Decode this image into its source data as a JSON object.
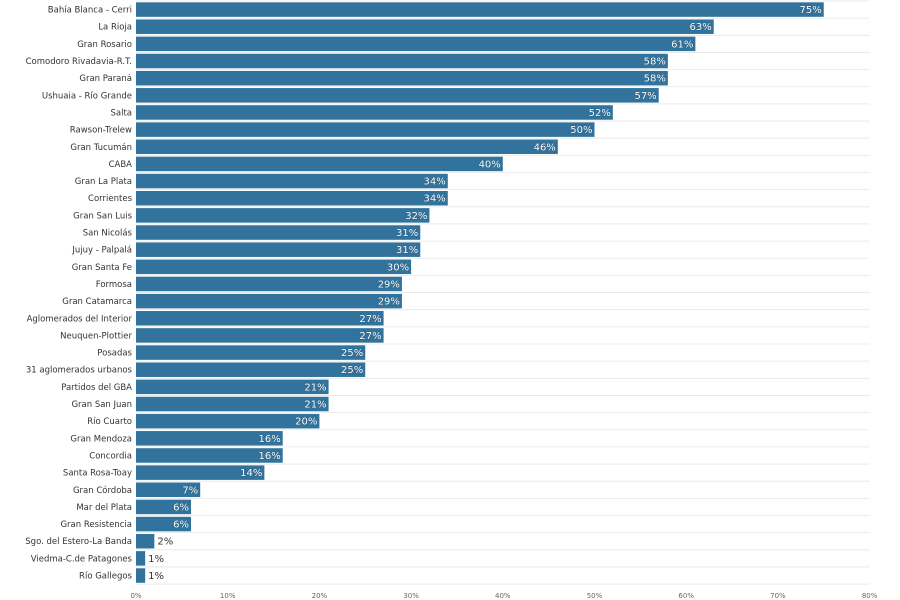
{
  "chart_data": {
    "type": "bar",
    "orientation": "horizontal",
    "categories": [
      "Bahía Blanca - Cerri",
      "La Rioja",
      "Gran Rosario",
      "Comodoro Rivadavia-R.T.",
      "Gran Paraná",
      "Ushuaia - Río Grande",
      "Salta",
      "Rawson-Trelew",
      "Gran Tucumán",
      "CABA",
      "Gran La Plata",
      "Corrientes",
      "Gran San Luis",
      "San Nicolás",
      "Jujuy - Palpalá",
      "Gran Santa Fe",
      "Formosa",
      "Gran Catamarca",
      "Aglomerados del Interior",
      "Neuquen-Plottier",
      "Posadas",
      "31 aglomerados urbanos",
      "Partidos del GBA",
      "Gran San Juan",
      "Río Cuarto",
      "Gran Mendoza",
      "Concordia",
      "Santa Rosa-Toay",
      "Gran Córdoba",
      "Mar del Plata",
      "Gran Resistencia",
      "Sgo. del Estero-La Banda",
      "Viedma-C.de Patagones",
      "Río Gallegos"
    ],
    "values": [
      75,
      63,
      61,
      58,
      58,
      57,
      52,
      50,
      46,
      40,
      34,
      34,
      32,
      31,
      31,
      30,
      29,
      29,
      27,
      27,
      25,
      25,
      21,
      21,
      20,
      16,
      16,
      14,
      7,
      6,
      6,
      2,
      1,
      1
    ],
    "value_labels": [
      "75%",
      "63%",
      "61%",
      "58%",
      "58%",
      "57%",
      "52%",
      "50%",
      "46%",
      "40%",
      "34%",
      "34%",
      "32%",
      "31%",
      "31%",
      "30%",
      "29%",
      "29%",
      "27%",
      "27%",
      "25%",
      "25%",
      "21%",
      "21%",
      "20%",
      "16%",
      "16%",
      "14%",
      "7%",
      "6%",
      "6%",
      "2%",
      "1%",
      "1%"
    ],
    "xlim": [
      0,
      80
    ],
    "x_ticks": [
      0,
      10,
      20,
      30,
      40,
      50,
      60,
      70,
      80
    ],
    "x_tick_labels": [
      "0%",
      "10%",
      "20%",
      "30%",
      "40%",
      "50%",
      "60%",
      "70%",
      "80%"
    ],
    "title": "",
    "xlabel": "",
    "ylabel": "",
    "grid": true,
    "colors": {
      "bar": "#31739c",
      "grid": "#e6e6e6",
      "text": "#333333"
    }
  }
}
